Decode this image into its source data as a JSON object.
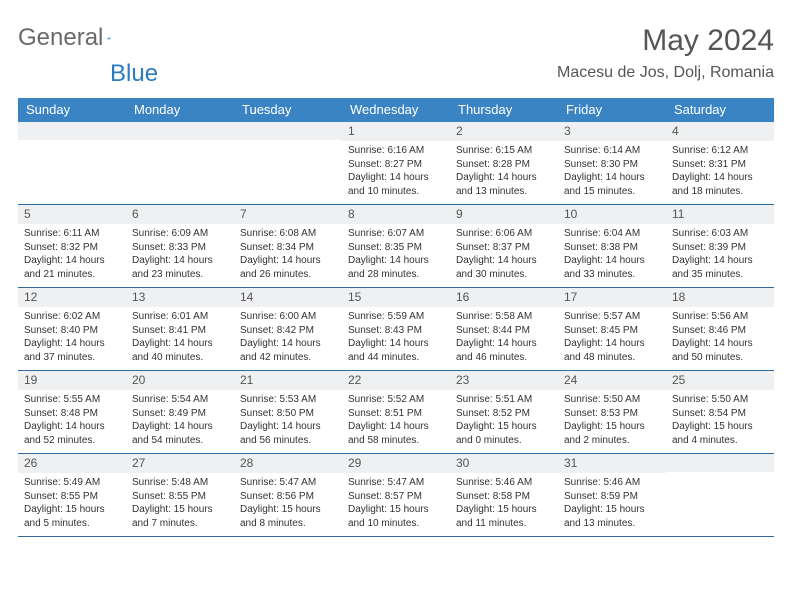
{
  "logo": {
    "word1": "General",
    "word2": "Blue",
    "colors": {
      "gray": "#6a6a6a",
      "blue": "#2c7bbf",
      "mark": "#2f6aa0"
    }
  },
  "title": {
    "month": "May 2024",
    "location": "Macesu de Jos, Dolj, Romania"
  },
  "style": {
    "header_bg": "#3b84c4",
    "header_text": "#ffffff",
    "daynum_bg": "#eef0f2",
    "border_color": "#2f6aa0",
    "body_text": "#333333",
    "title_color": "#555555",
    "header_fontsize": 13,
    "daynum_fontsize": 12,
    "body_fontsize": 10
  },
  "weekdays": [
    "Sunday",
    "Monday",
    "Tuesday",
    "Wednesday",
    "Thursday",
    "Friday",
    "Saturday"
  ],
  "weeks": [
    [
      null,
      null,
      null,
      {
        "n": "1",
        "l1": "Sunrise: 6:16 AM",
        "l2": "Sunset: 8:27 PM",
        "l3": "Daylight: 14 hours",
        "l4": "and 10 minutes."
      },
      {
        "n": "2",
        "l1": "Sunrise: 6:15 AM",
        "l2": "Sunset: 8:28 PM",
        "l3": "Daylight: 14 hours",
        "l4": "and 13 minutes."
      },
      {
        "n": "3",
        "l1": "Sunrise: 6:14 AM",
        "l2": "Sunset: 8:30 PM",
        "l3": "Daylight: 14 hours",
        "l4": "and 15 minutes."
      },
      {
        "n": "4",
        "l1": "Sunrise: 6:12 AM",
        "l2": "Sunset: 8:31 PM",
        "l3": "Daylight: 14 hours",
        "l4": "and 18 minutes."
      }
    ],
    [
      {
        "n": "5",
        "l1": "Sunrise: 6:11 AM",
        "l2": "Sunset: 8:32 PM",
        "l3": "Daylight: 14 hours",
        "l4": "and 21 minutes."
      },
      {
        "n": "6",
        "l1": "Sunrise: 6:09 AM",
        "l2": "Sunset: 8:33 PM",
        "l3": "Daylight: 14 hours",
        "l4": "and 23 minutes."
      },
      {
        "n": "7",
        "l1": "Sunrise: 6:08 AM",
        "l2": "Sunset: 8:34 PM",
        "l3": "Daylight: 14 hours",
        "l4": "and 26 minutes."
      },
      {
        "n": "8",
        "l1": "Sunrise: 6:07 AM",
        "l2": "Sunset: 8:35 PM",
        "l3": "Daylight: 14 hours",
        "l4": "and 28 minutes."
      },
      {
        "n": "9",
        "l1": "Sunrise: 6:06 AM",
        "l2": "Sunset: 8:37 PM",
        "l3": "Daylight: 14 hours",
        "l4": "and 30 minutes."
      },
      {
        "n": "10",
        "l1": "Sunrise: 6:04 AM",
        "l2": "Sunset: 8:38 PM",
        "l3": "Daylight: 14 hours",
        "l4": "and 33 minutes."
      },
      {
        "n": "11",
        "l1": "Sunrise: 6:03 AM",
        "l2": "Sunset: 8:39 PM",
        "l3": "Daylight: 14 hours",
        "l4": "and 35 minutes."
      }
    ],
    [
      {
        "n": "12",
        "l1": "Sunrise: 6:02 AM",
        "l2": "Sunset: 8:40 PM",
        "l3": "Daylight: 14 hours",
        "l4": "and 37 minutes."
      },
      {
        "n": "13",
        "l1": "Sunrise: 6:01 AM",
        "l2": "Sunset: 8:41 PM",
        "l3": "Daylight: 14 hours",
        "l4": "and 40 minutes."
      },
      {
        "n": "14",
        "l1": "Sunrise: 6:00 AM",
        "l2": "Sunset: 8:42 PM",
        "l3": "Daylight: 14 hours",
        "l4": "and 42 minutes."
      },
      {
        "n": "15",
        "l1": "Sunrise: 5:59 AM",
        "l2": "Sunset: 8:43 PM",
        "l3": "Daylight: 14 hours",
        "l4": "and 44 minutes."
      },
      {
        "n": "16",
        "l1": "Sunrise: 5:58 AM",
        "l2": "Sunset: 8:44 PM",
        "l3": "Daylight: 14 hours",
        "l4": "and 46 minutes."
      },
      {
        "n": "17",
        "l1": "Sunrise: 5:57 AM",
        "l2": "Sunset: 8:45 PM",
        "l3": "Daylight: 14 hours",
        "l4": "and 48 minutes."
      },
      {
        "n": "18",
        "l1": "Sunrise: 5:56 AM",
        "l2": "Sunset: 8:46 PM",
        "l3": "Daylight: 14 hours",
        "l4": "and 50 minutes."
      }
    ],
    [
      {
        "n": "19",
        "l1": "Sunrise: 5:55 AM",
        "l2": "Sunset: 8:48 PM",
        "l3": "Daylight: 14 hours",
        "l4": "and 52 minutes."
      },
      {
        "n": "20",
        "l1": "Sunrise: 5:54 AM",
        "l2": "Sunset: 8:49 PM",
        "l3": "Daylight: 14 hours",
        "l4": "and 54 minutes."
      },
      {
        "n": "21",
        "l1": "Sunrise: 5:53 AM",
        "l2": "Sunset: 8:50 PM",
        "l3": "Daylight: 14 hours",
        "l4": "and 56 minutes."
      },
      {
        "n": "22",
        "l1": "Sunrise: 5:52 AM",
        "l2": "Sunset: 8:51 PM",
        "l3": "Daylight: 14 hours",
        "l4": "and 58 minutes."
      },
      {
        "n": "23",
        "l1": "Sunrise: 5:51 AM",
        "l2": "Sunset: 8:52 PM",
        "l3": "Daylight: 15 hours",
        "l4": "and 0 minutes."
      },
      {
        "n": "24",
        "l1": "Sunrise: 5:50 AM",
        "l2": "Sunset: 8:53 PM",
        "l3": "Daylight: 15 hours",
        "l4": "and 2 minutes."
      },
      {
        "n": "25",
        "l1": "Sunrise: 5:50 AM",
        "l2": "Sunset: 8:54 PM",
        "l3": "Daylight: 15 hours",
        "l4": "and 4 minutes."
      }
    ],
    [
      {
        "n": "26",
        "l1": "Sunrise: 5:49 AM",
        "l2": "Sunset: 8:55 PM",
        "l3": "Daylight: 15 hours",
        "l4": "and 5 minutes."
      },
      {
        "n": "27",
        "l1": "Sunrise: 5:48 AM",
        "l2": "Sunset: 8:55 PM",
        "l3": "Daylight: 15 hours",
        "l4": "and 7 minutes."
      },
      {
        "n": "28",
        "l1": "Sunrise: 5:47 AM",
        "l2": "Sunset: 8:56 PM",
        "l3": "Daylight: 15 hours",
        "l4": "and 8 minutes."
      },
      {
        "n": "29",
        "l1": "Sunrise: 5:47 AM",
        "l2": "Sunset: 8:57 PM",
        "l3": "Daylight: 15 hours",
        "l4": "and 10 minutes."
      },
      {
        "n": "30",
        "l1": "Sunrise: 5:46 AM",
        "l2": "Sunset: 8:58 PM",
        "l3": "Daylight: 15 hours",
        "l4": "and 11 minutes."
      },
      {
        "n": "31",
        "l1": "Sunrise: 5:46 AM",
        "l2": "Sunset: 8:59 PM",
        "l3": "Daylight: 15 hours",
        "l4": "and 13 minutes."
      },
      null
    ]
  ]
}
